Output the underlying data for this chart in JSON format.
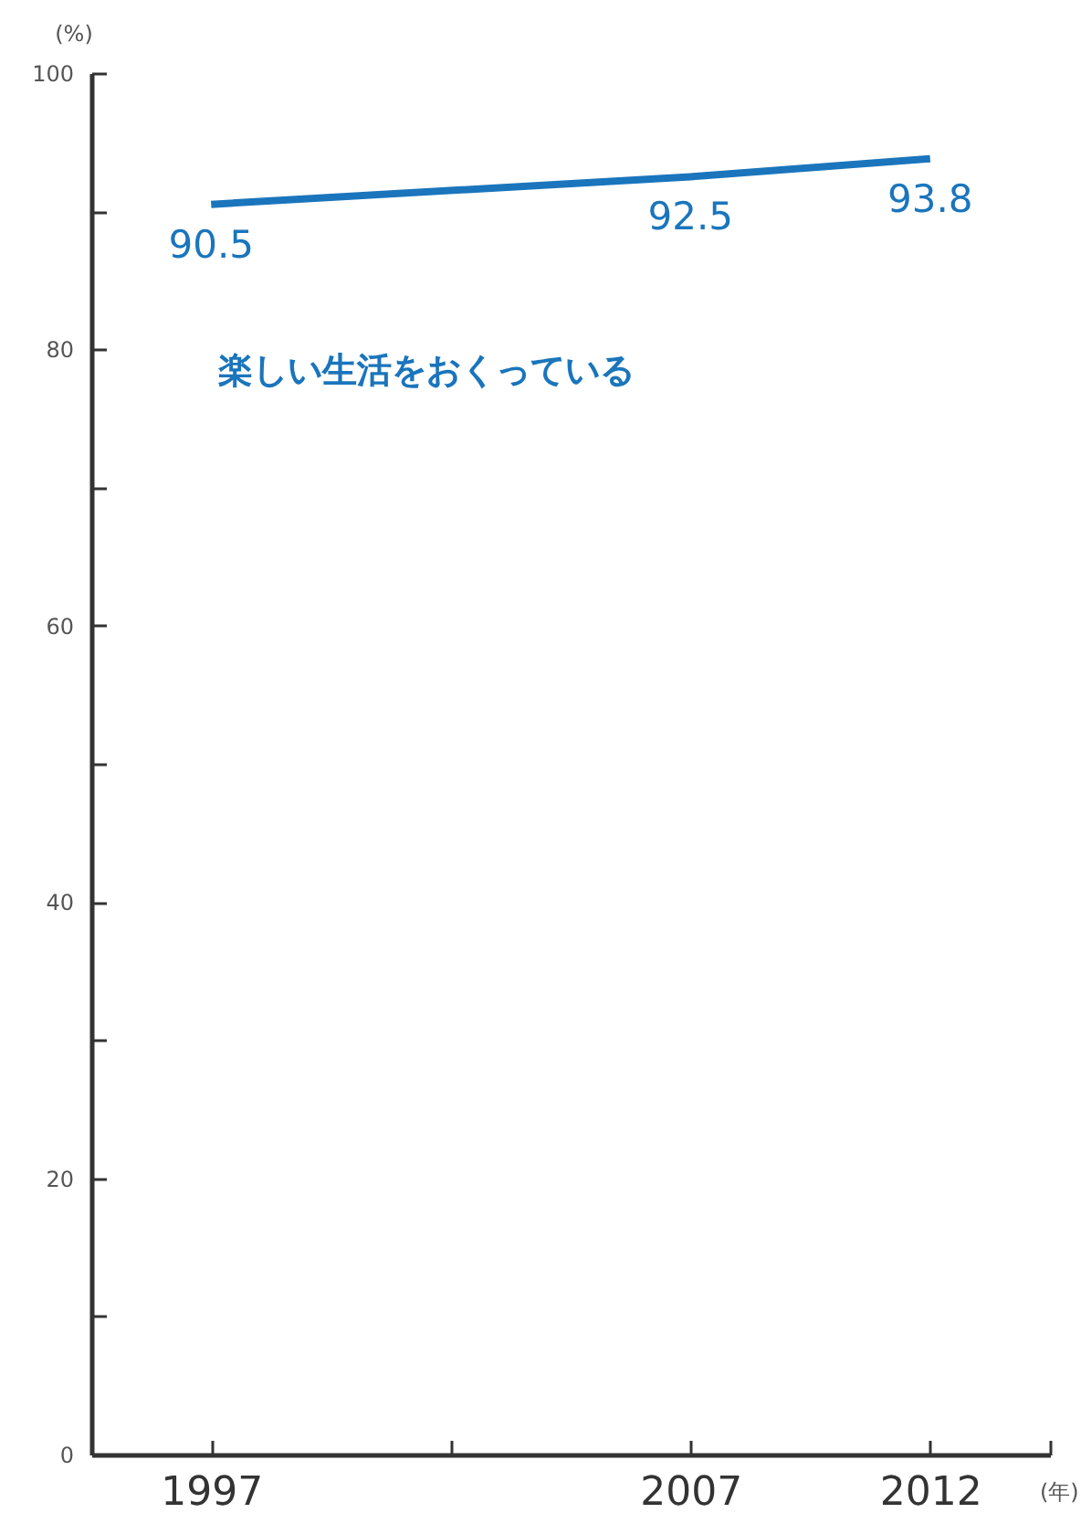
{
  "chart_data": {
    "type": "line",
    "xlabel": "(年)",
    "ylabel": "(%)",
    "x": [
      1997,
      2007,
      2012
    ],
    "series": [
      {
        "name": "楽しい生活をおくっている",
        "color": "#1a75bc",
        "values": [
          90.5,
          92.5,
          93.8
        ]
      }
    ],
    "xlim": [
      1994.5,
      2014.5
    ],
    "xticks": [
      1997,
      {
        "value": 2002,
        "label": null
      },
      2007,
      2012,
      {
        "value": 2014.5,
        "label": null
      }
    ],
    "ylim": [
      0,
      100
    ],
    "yticks": [
      0,
      {
        "value": 10,
        "label": null
      },
      20,
      {
        "value": 30,
        "label": null
      },
      40,
      {
        "value": 50,
        "label": null
      },
      60,
      {
        "value": 70,
        "label": null
      },
      80,
      {
        "value": 90,
        "label": null
      },
      100
    ],
    "data_labels": true,
    "grid": false,
    "legend": false,
    "line_style": "solid",
    "marker": "none"
  }
}
